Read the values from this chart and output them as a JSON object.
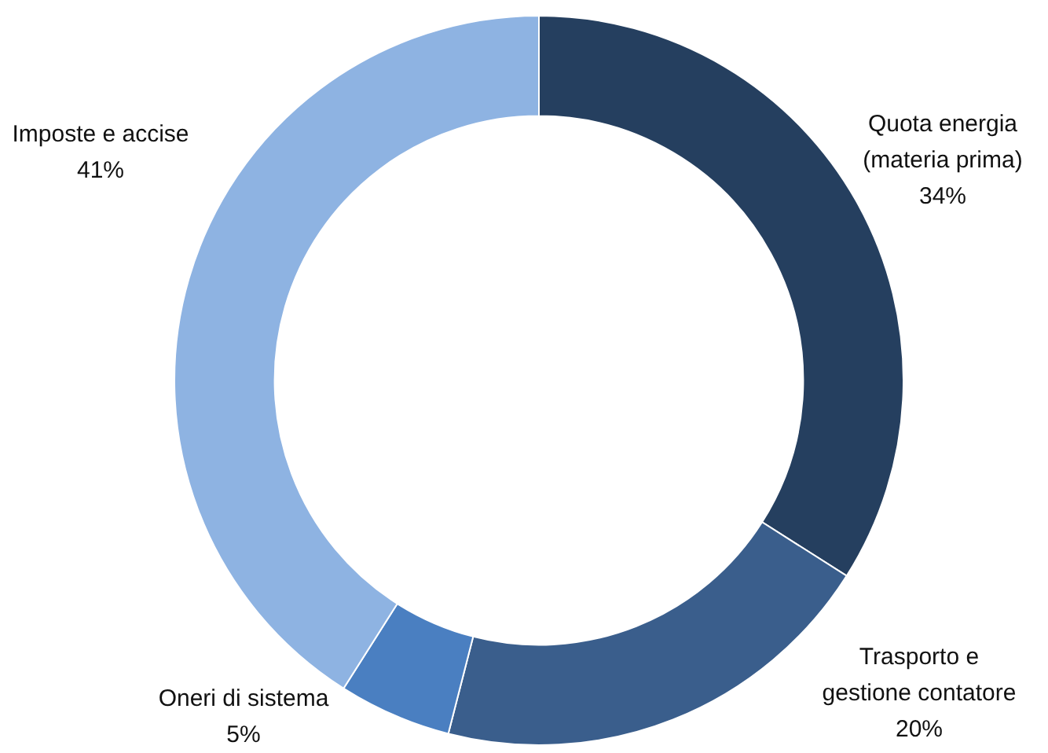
{
  "chart_data": {
    "type": "donut",
    "categories": [
      "Quota energia\n(materia prima)",
      "Trasporto e\ngestione contatore",
      "Oneri di sistema",
      "Imposte e accise"
    ],
    "values": [
      34,
      20,
      5,
      41
    ],
    "colors": [
      "#253f5f",
      "#3a5e8c",
      "#4a7fc1",
      "#8eb3e2"
    ],
    "value_labels": [
      "34%",
      "20%",
      "5%",
      "41%"
    ]
  }
}
